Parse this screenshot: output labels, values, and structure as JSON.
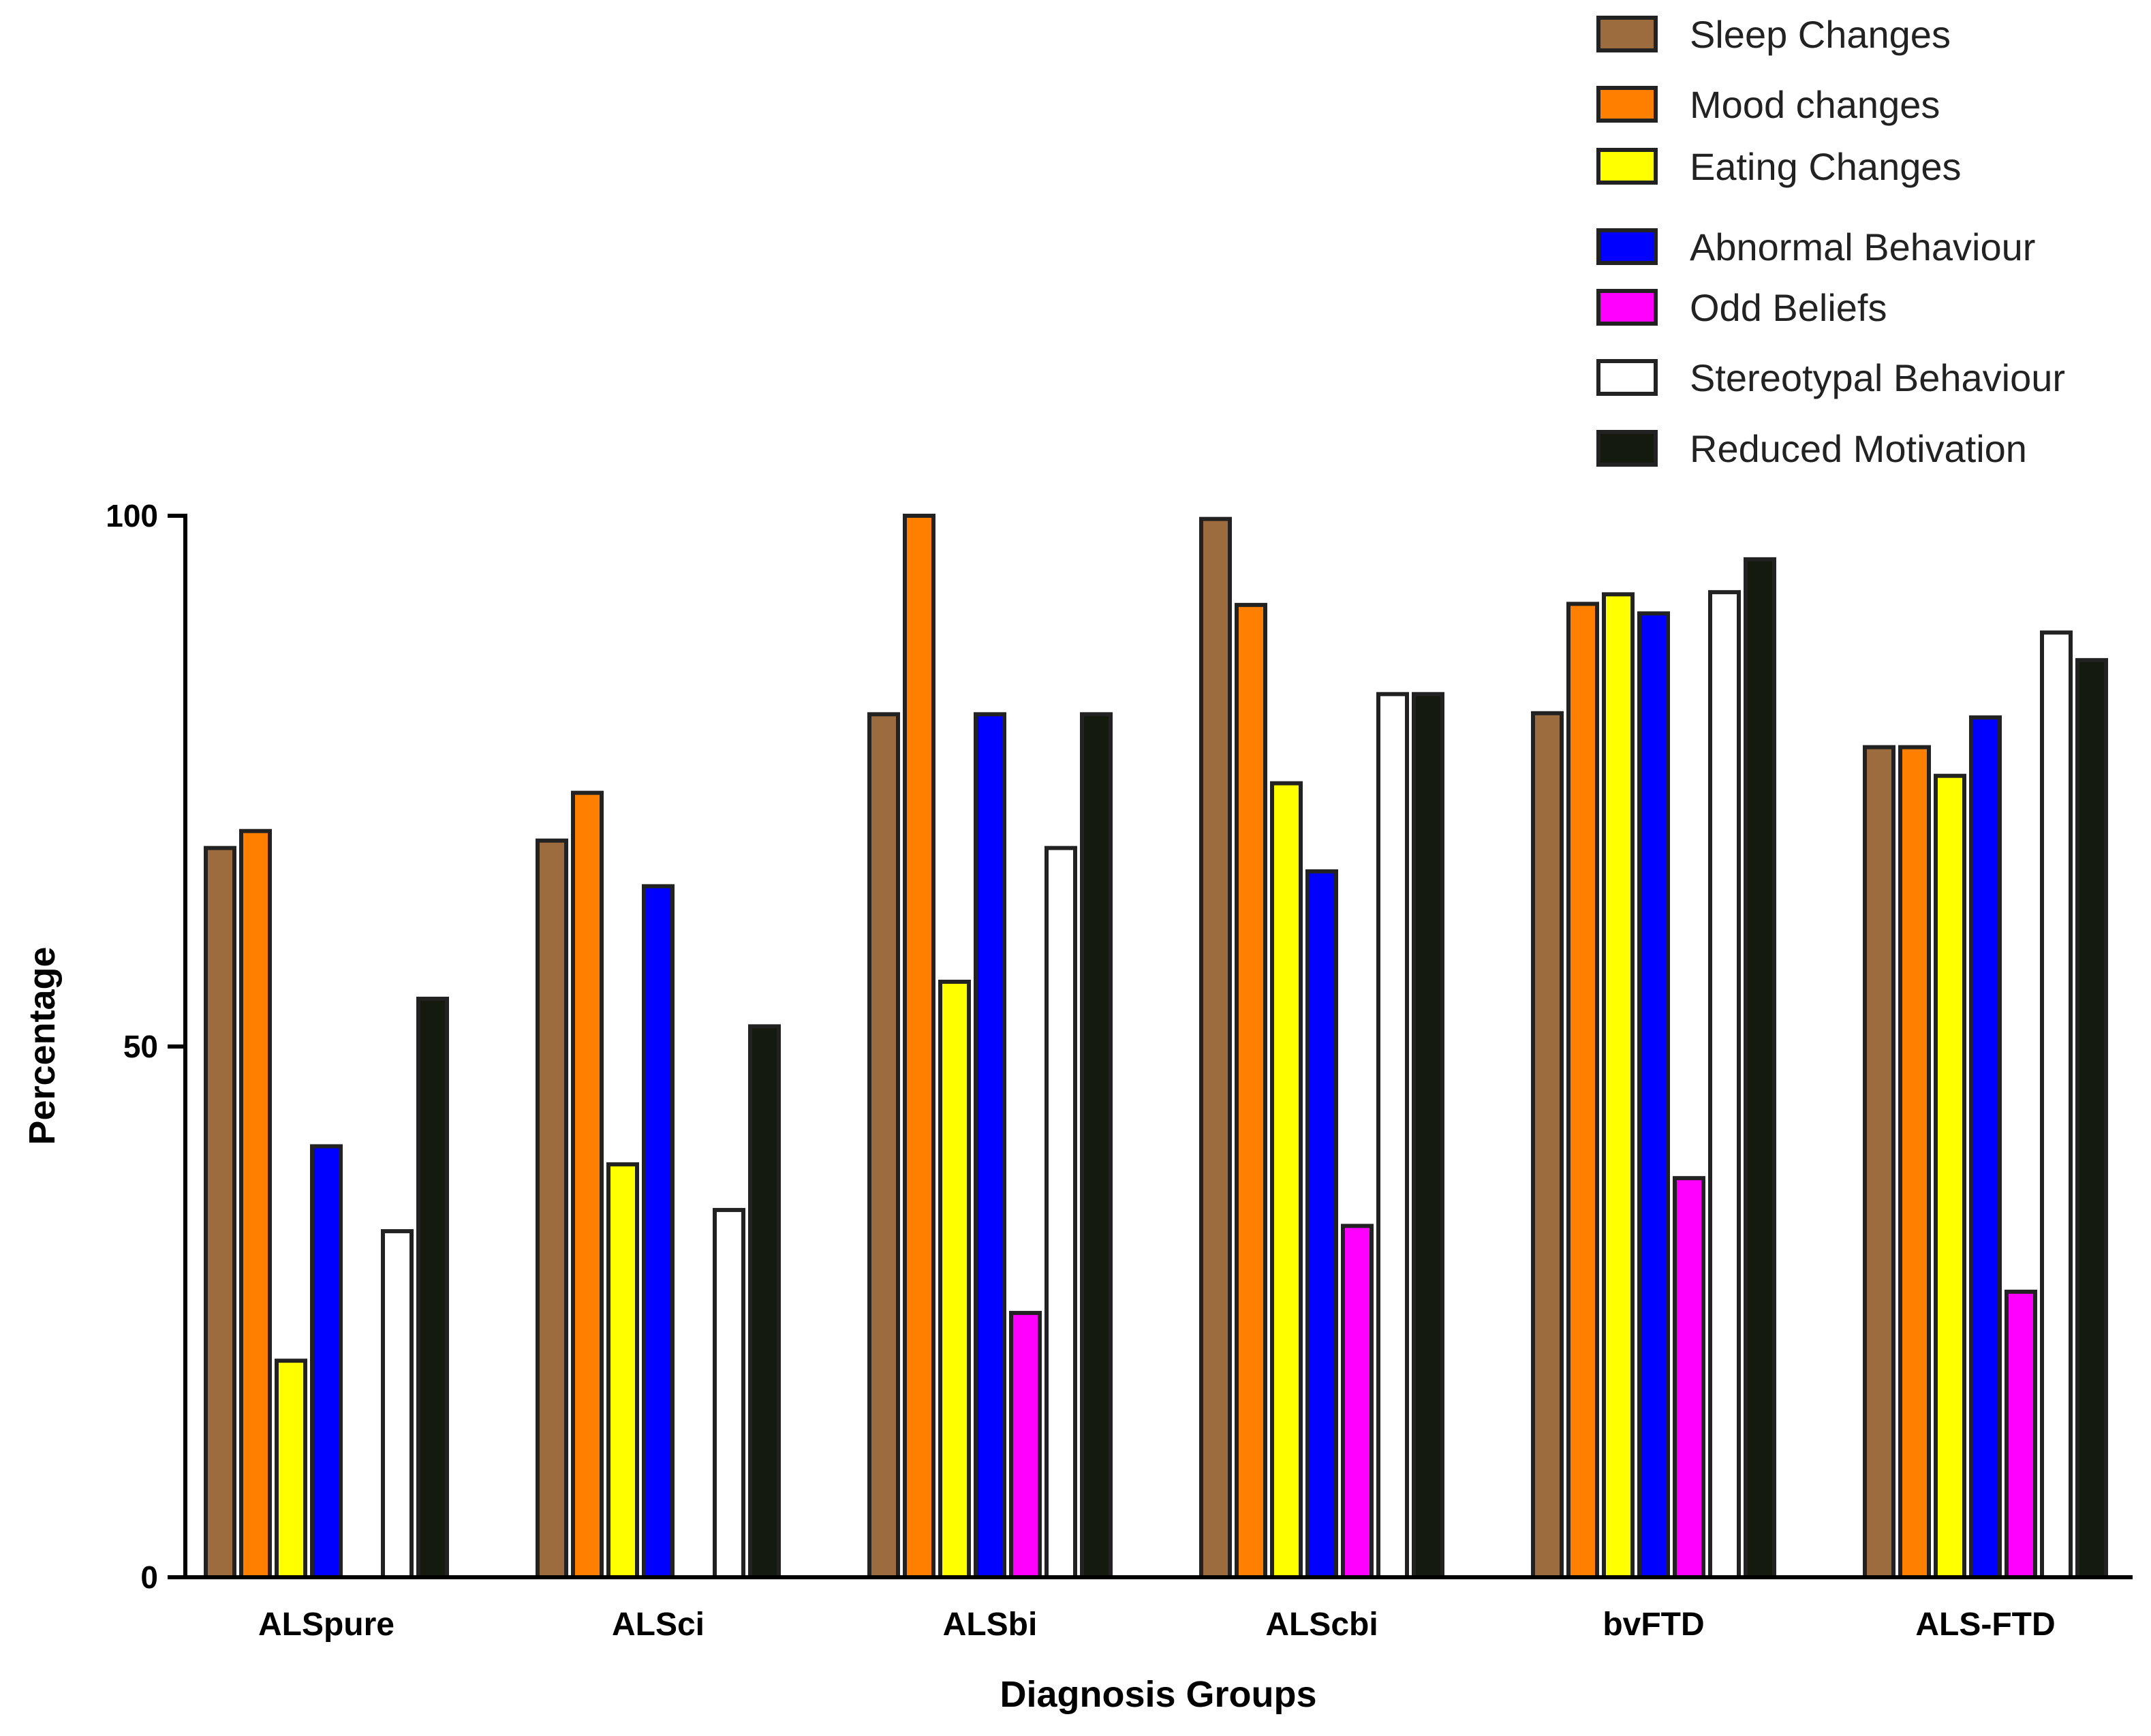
{
  "chart_data": {
    "type": "bar",
    "title": "",
    "xlabel": "Diagnosis Groups",
    "ylabel": "Percentage",
    "ylim": [
      0,
      100
    ],
    "yticks": [
      "0",
      "50",
      "100"
    ],
    "grid": false,
    "legend_position": "top-right",
    "categories": [
      "ALSpure",
      "ALSci",
      "ALSbi",
      "ALScbi",
      "bvFTD",
      "ALS-FTD"
    ],
    "series": [
      {
        "name": "Sleep Changes",
        "color": "#9c6b3e",
        "values": [
          68.7,
          69.4,
          81.3,
          99.7,
          81.4,
          78.2
        ]
      },
      {
        "name": "Mood changes",
        "color": "#ff8000",
        "values": [
          70.3,
          73.9,
          100,
          91.6,
          91.7,
          78.2
        ]
      },
      {
        "name": "Eating Changes",
        "color": "#ffff00",
        "values": [
          20.4,
          38.9,
          56.1,
          74.8,
          92.6,
          75.5
        ]
      },
      {
        "name": "Abnormal Behaviour",
        "color": "#0000ff",
        "values": [
          40.6,
          65.1,
          81.3,
          66.5,
          90.8,
          81.0
        ]
      },
      {
        "name": "Odd Beliefs",
        "color": "#ff00ff",
        "values": [
          0,
          0,
          24.9,
          33.1,
          37.6,
          26.9
        ]
      },
      {
        "name": "Stereotypal Behaviour",
        "color": "#ffffff",
        "values": [
          32.6,
          34.6,
          68.7,
          83.2,
          92.8,
          89.0
        ]
      },
      {
        "name": "Reduced Motivation",
        "color": "#141a0e",
        "values": [
          54.5,
          51.9,
          81.3,
          83.2,
          95.9,
          86.4
        ]
      }
    ]
  }
}
